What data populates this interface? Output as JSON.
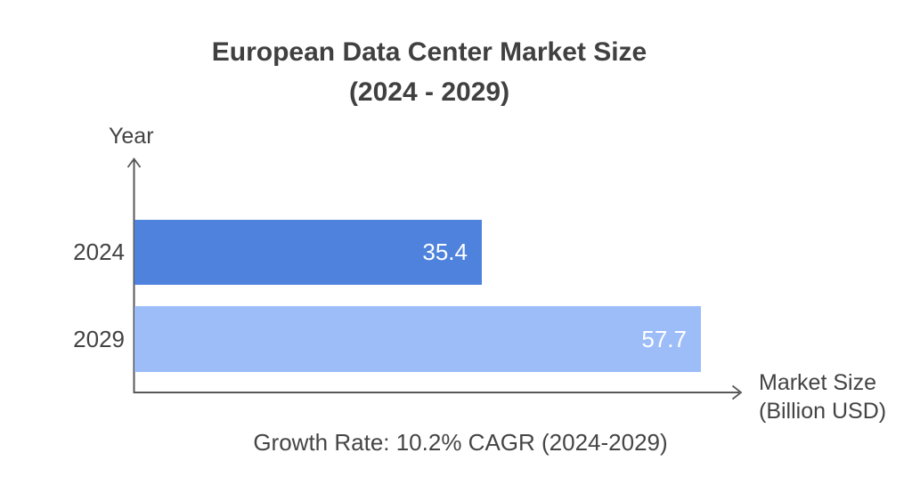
{
  "chart_data": {
    "type": "bar",
    "orientation": "horizontal",
    "title": "European Data Center Market Size (2024 - 2029)",
    "title_lines": [
      "European Data Center Market Size",
      "(2024 - 2029)"
    ],
    "categories": [
      "2024",
      "2029"
    ],
    "values": [
      35.4,
      57.7
    ],
    "value_labels": [
      "35.4",
      "57.7"
    ],
    "bar_colors": [
      "#4e82dc",
      "#9dbdf9"
    ],
    "value_label_color": "#ffffff",
    "xlabel": "Market Size (Billion USD)",
    "xlabel_lines": [
      "Market Size",
      "(Billion USD)"
    ],
    "ylabel": "Year",
    "xlim": [
      0,
      57.7
    ],
    "grid": false,
    "legend": false,
    "axis_color": "#58585a",
    "text_color": "#434343",
    "annotation": "Growth Rate: 10.2% CAGR (2024-2029)"
  }
}
